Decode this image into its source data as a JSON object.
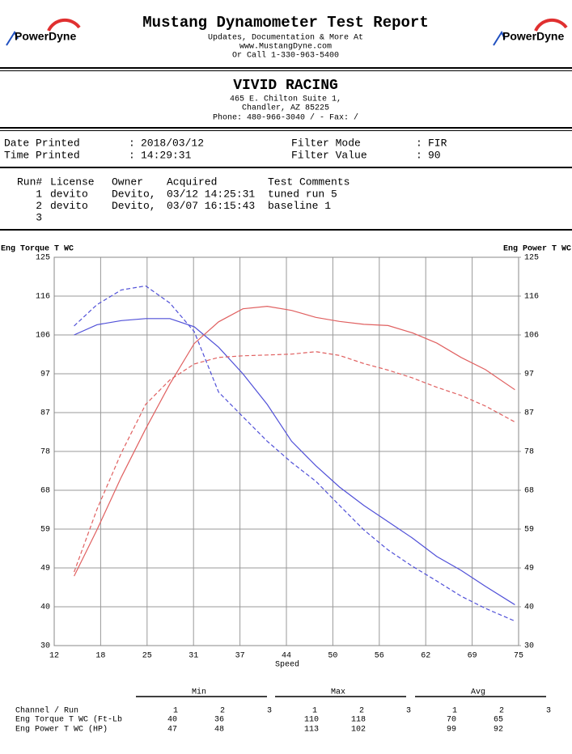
{
  "header": {
    "title": "Mustang Dynamometer Test Report",
    "lines": [
      "Updates, Documentation & More At",
      "www.MustangDyne.com",
      "Or Call 1-330-963-5400"
    ],
    "logo": "PowerDyne"
  },
  "shop": {
    "name": "VIVID RACING",
    "lines": [
      "465 E. Chilton Suite 1,",
      "Chandler, AZ  85225",
      "Phone: 480-966-3040 /  - Fax:  /"
    ]
  },
  "info": {
    "separator": ":",
    "left": [
      [
        "Date Printed",
        "2018/03/12"
      ],
      [
        "Time Printed",
        "14:29:31"
      ]
    ],
    "right": [
      [
        "Filter Mode",
        "FIR"
      ],
      [
        "Filter Value",
        90
      ]
    ]
  },
  "runs": {
    "columns": [
      "Run#",
      "License",
      "Owner",
      "Acquired",
      "Test Comments"
    ],
    "rows": [
      [
        1,
        "devito",
        "Devito,",
        "03/12 14:25:31",
        "tuned run 5"
      ],
      [
        2,
        "devito",
        "Devito,",
        "03/07 16:15:43",
        "baseline 1"
      ],
      [
        3
      ]
    ]
  },
  "chart_data": {
    "type": "line",
    "xlabel": "Speed",
    "ylabel": "Eng Torque T WC",
    "y2label": "Eng Power T WC",
    "grid": true,
    "x": [
      14.7,
      17.8,
      21.1,
      24.4,
      27.7,
      31.0,
      34.3,
      37.6,
      40.9,
      44.2,
      47.5,
      50.7,
      54.0,
      57.3,
      60.6,
      63.9,
      67.2,
      70.5,
      74.5
    ],
    "xlim": [
      12,
      75
    ],
    "xticks": [
      12,
      {
        "value": 18.3,
        "label": "18"
      },
      {
        "value": 24.6,
        "label": "25"
      },
      {
        "value": 30.9,
        "label": "31"
      },
      {
        "value": 37.2,
        "label": "37"
      },
      {
        "value": 43.5,
        "label": "44"
      },
      {
        "value": 49.8,
        "label": "50"
      },
      {
        "value": 56.1,
        "label": "56"
      },
      {
        "value": 62.4,
        "label": "62"
      },
      {
        "value": 68.7,
        "label": "69"
      },
      75
    ],
    "ylim": [
      30,
      125
    ],
    "yticks": [
      30,
      {
        "value": 39.5,
        "label": "40"
      },
      49,
      {
        "value": 58.5,
        "label": "59"
      },
      68,
      {
        "value": 77.5,
        "label": "78"
      },
      87,
      {
        "value": 96.5,
        "label": "97"
      },
      106,
      {
        "value": 115.5,
        "label": "116"
      },
      125
    ],
    "y2lim": [
      30,
      125
    ],
    "y2ticks": [
      30,
      {
        "value": 39.5,
        "label": "40"
      },
      49,
      {
        "value": 58.5,
        "label": "59"
      },
      68,
      {
        "value": 77.5,
        "label": "78"
      },
      87,
      {
        "value": 96.5,
        "label": "97"
      },
      106,
      {
        "value": 115.5,
        "label": "116"
      },
      125
    ],
    "series": [
      {
        "color": "#5050d8",
        "dash": false,
        "values": [
          106,
          108.5,
          109.5,
          110,
          110,
          108,
          103,
          96.5,
          89,
          80,
          74,
          68.8,
          64.3,
          60.3,
          56.3,
          51.8,
          48.4,
          44.5,
          40
        ]
      },
      {
        "color": "#5050d8",
        "dash": true,
        "values": [
          108.2,
          113.4,
          117,
          118,
          113.8,
          106.8,
          92,
          86,
          80,
          74.8,
          70.2,
          64.3,
          58.3,
          53.4,
          49.4,
          45.8,
          42.1,
          39.1,
          36
        ]
      },
      {
        "color": "#e06060",
        "dash": false,
        "axis": "y2",
        "values": [
          47,
          58.3,
          71.2,
          83,
          94,
          103.9,
          109.2,
          112.4,
          113,
          112,
          110.3,
          109.3,
          108.6,
          108.3,
          106.5,
          104,
          100.5,
          97.5,
          92.6
        ]
      },
      {
        "color": "#e06060",
        "dash": true,
        "axis": "y2",
        "values": [
          48,
          63.3,
          77.1,
          89,
          95,
          98.9,
          100.5,
          100.9,
          101.1,
          101.3,
          101.9,
          101,
          99,
          97.4,
          95.5,
          93.2,
          91.2,
          88.6,
          84.7
        ]
      }
    ]
  },
  "summary": {
    "groups": [
      "Min",
      "Max",
      "Avg"
    ],
    "channel_header": "Channel / Run",
    "runs": [
      1,
      2,
      3
    ],
    "rows": [
      {
        "channel": "Eng Torque T WC (Ft-Lb",
        "color": "#2020c0",
        "values": [
          [
            40,
            36
          ],
          [
            110,
            118
          ],
          [
            70,
            65
          ]
        ]
      },
      {
        "channel": "Eng Power T WC (HP)",
        "color": "#d02020",
        "values": [
          [
            47,
            48
          ],
          [
            113,
            102
          ],
          [
            99,
            92
          ]
        ]
      }
    ]
  }
}
